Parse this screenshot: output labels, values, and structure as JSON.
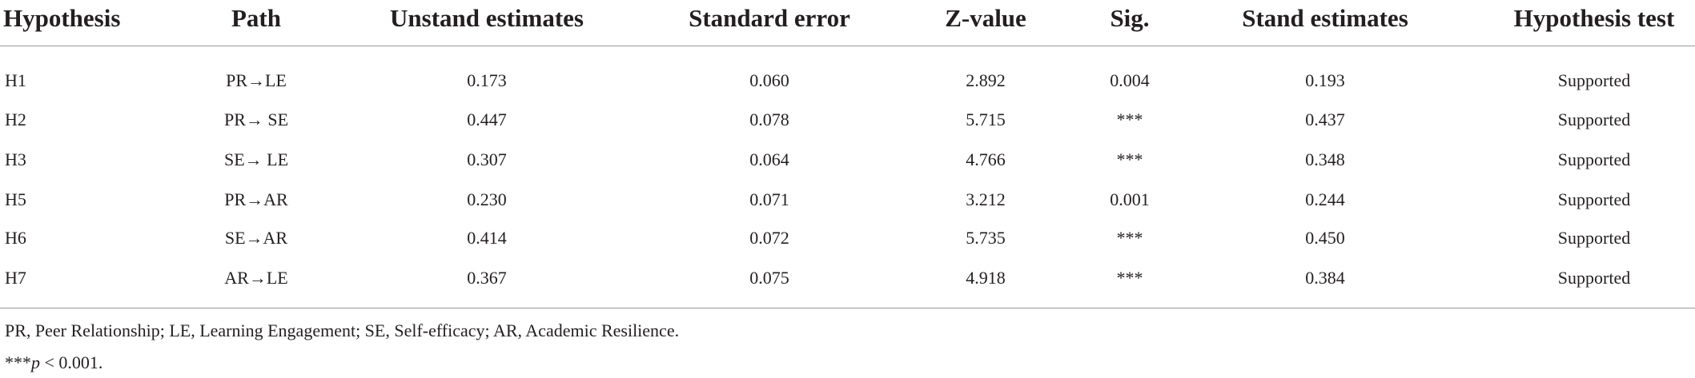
{
  "table": {
    "header": [
      "Hypothesis",
      "Path",
      "Unstand estimates",
      "Standard error",
      "Z-value",
      "Sig.",
      "Stand estimates",
      "Hypothesis test"
    ],
    "rows": [
      [
        "H1",
        "PR→LE",
        "0.173",
        "0.060",
        "2.892",
        "0.004",
        "0.193",
        "Supported"
      ],
      [
        "H2",
        "PR→ SE",
        "0.447",
        "0.078",
        "5.715",
        "***",
        "0.437",
        "Supported"
      ],
      [
        "H3",
        "SE→ LE",
        "0.307",
        "0.064",
        "4.766",
        "***",
        "0.348",
        "Supported"
      ],
      [
        "H5",
        "PR→AR",
        "0.230",
        "0.071",
        "3.212",
        "0.001",
        "0.244",
        "Supported"
      ],
      [
        "H6",
        "SE→AR",
        "0.414",
        "0.072",
        "5.735",
        "***",
        "0.450",
        "Supported"
      ],
      [
        "H7",
        "AR→LE",
        "0.367",
        "0.075",
        "4.918",
        "***",
        "0.384",
        "Supported"
      ]
    ]
  },
  "footnotes": [
    "PR, Peer Relationship; LE, Learning Engagement; SE, Self-efficacy; AR, Academic Resilience.",
    {
      "prefix": "***",
      "variable": "p",
      "rest": " < 0.001."
    }
  ]
}
